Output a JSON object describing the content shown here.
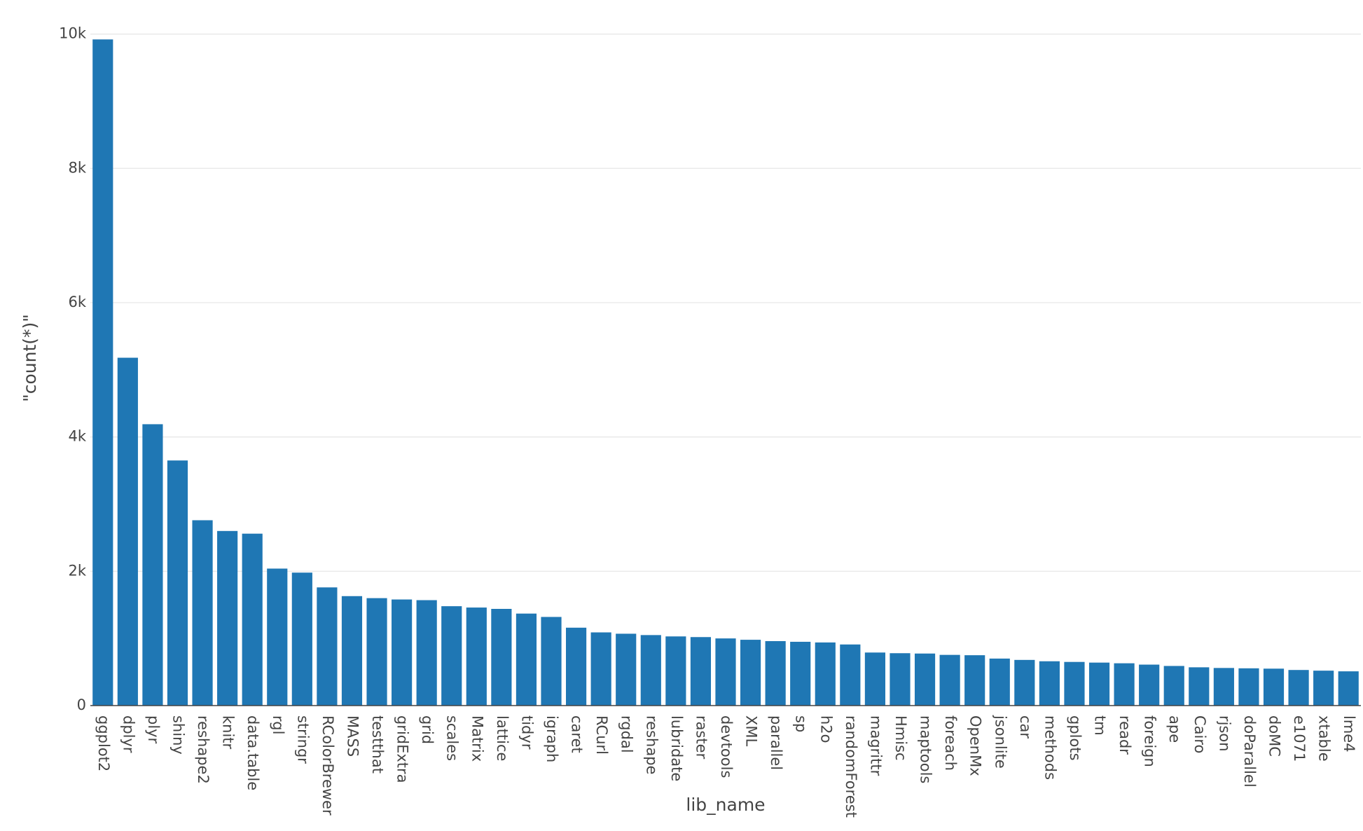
{
  "chart_data": {
    "type": "bar",
    "x_label": "lib_name",
    "y_label": "\"count(*)\"",
    "categories": [
      "ggplot2",
      "dplyr",
      "plyr",
      "shiny",
      "reshape2",
      "knitr",
      "data.table",
      "rgl",
      "stringr",
      "RColorBrewer",
      "MASS",
      "testthat",
      "gridExtra",
      "grid",
      "scales",
      "Matrix",
      "lattice",
      "tidyr",
      "igraph",
      "caret",
      "RCurl",
      "rgdal",
      "reshape",
      "lubridate",
      "raster",
      "devtools",
      "XML",
      "parallel",
      "sp",
      "h2o",
      "randomForest",
      "magrittr",
      "Hmisc",
      "maptools",
      "foreach",
      "OpenMx",
      "jsonlite",
      "car",
      "methods",
      "gplots",
      "tm",
      "readr",
      "foreign",
      "ape",
      "Cairo",
      "rjson",
      "doParallel",
      "doMC",
      "e1071",
      "xtable",
      "lme4"
    ],
    "values": [
      9920,
      5180,
      4190,
      3650,
      2760,
      2600,
      2560,
      2040,
      1980,
      1760,
      1630,
      1600,
      1580,
      1570,
      1480,
      1460,
      1440,
      1370,
      1320,
      1160,
      1090,
      1070,
      1050,
      1030,
      1020,
      1000,
      980,
      960,
      950,
      940,
      910,
      790,
      780,
      775,
      755,
      750,
      700,
      680,
      660,
      650,
      640,
      630,
      610,
      590,
      570,
      560,
      555,
      550,
      530,
      520,
      510
    ],
    "color": "#1f77b4",
    "ylim": [
      0,
      10000
    ],
    "yticks": [
      0,
      {
        "value": 2000,
        "label": "2k"
      },
      {
        "value": 4000,
        "label": "4k"
      },
      {
        "value": 6000,
        "label": "6k"
      },
      {
        "value": 8000,
        "label": "8k"
      },
      {
        "value": 10000,
        "label": "10k"
      }
    ],
    "grid": true
  }
}
